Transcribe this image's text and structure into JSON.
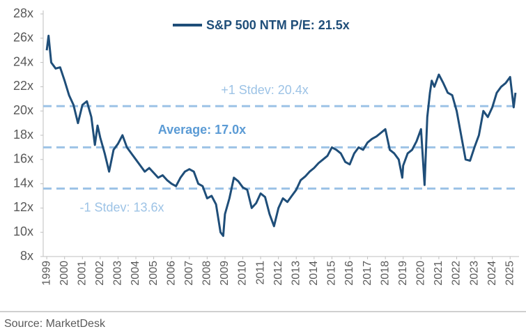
{
  "chart_data": {
    "type": "line",
    "series": [
      {
        "name": "S&P 500 NTM P/E: 21.5x",
        "color": "#1f4e79",
        "x": [
          1999.0,
          1999.1,
          1999.25,
          1999.5,
          1999.75,
          2000.0,
          2000.25,
          2000.5,
          2000.75,
          2001.0,
          2001.25,
          2001.5,
          2001.7,
          2001.85,
          2002.0,
          2002.25,
          2002.5,
          2002.75,
          2003.0,
          2003.25,
          2003.5,
          2003.75,
          2004.0,
          2004.25,
          2004.5,
          2004.75,
          2005.0,
          2005.25,
          2005.5,
          2005.75,
          2006.0,
          2006.25,
          2006.5,
          2006.75,
          2007.0,
          2007.25,
          2007.5,
          2007.75,
          2008.0,
          2008.25,
          2008.5,
          2008.75,
          2008.9,
          2009.0,
          2009.25,
          2009.5,
          2009.75,
          2010.0,
          2010.25,
          2010.5,
          2010.75,
          2011.0,
          2011.25,
          2011.5,
          2011.75,
          2012.0,
          2012.25,
          2012.5,
          2012.75,
          2013.0,
          2013.25,
          2013.5,
          2013.75,
          2014.0,
          2014.25,
          2014.5,
          2014.75,
          2015.0,
          2015.25,
          2015.5,
          2015.75,
          2016.0,
          2016.25,
          2016.5,
          2016.75,
          2017.0,
          2017.25,
          2017.5,
          2017.75,
          2018.0,
          2018.25,
          2018.5,
          2018.75,
          2018.95,
          2019.0,
          2019.25,
          2019.5,
          2019.75,
          2020.0,
          2020.2,
          2020.35,
          2020.5,
          2020.6,
          2020.75,
          2021.0,
          2021.25,
          2021.5,
          2021.75,
          2022.0,
          2022.25,
          2022.5,
          2022.75,
          2023.0,
          2023.25,
          2023.5,
          2023.75,
          2024.0,
          2024.25,
          2024.5,
          2024.75,
          2025.0,
          2025.2,
          2025.3
        ],
        "values": [
          25.0,
          26.2,
          24.0,
          23.5,
          23.6,
          22.5,
          21.3,
          20.5,
          19.0,
          20.5,
          20.8,
          19.5,
          17.2,
          18.8,
          17.8,
          16.5,
          15.0,
          16.8,
          17.3,
          18.0,
          17.0,
          16.5,
          16.0,
          15.5,
          15.0,
          15.3,
          14.9,
          14.5,
          14.7,
          14.3,
          14.0,
          13.8,
          14.5,
          15.0,
          15.2,
          15.0,
          14.0,
          13.8,
          12.8,
          13.0,
          12.3,
          10.0,
          9.7,
          11.5,
          12.8,
          14.5,
          14.2,
          13.7,
          13.5,
          12.0,
          12.4,
          13.2,
          12.9,
          11.5,
          10.5,
          12.0,
          12.8,
          12.5,
          13.0,
          13.5,
          14.3,
          14.6,
          15.0,
          15.3,
          15.7,
          16.0,
          16.3,
          17.0,
          16.8,
          16.5,
          15.8,
          15.6,
          16.5,
          17.0,
          16.8,
          17.4,
          17.7,
          17.9,
          18.2,
          18.5,
          16.8,
          16.5,
          16.0,
          14.5,
          15.5,
          16.5,
          16.8,
          17.5,
          18.5,
          13.9,
          19.5,
          21.5,
          22.5,
          22.0,
          23.0,
          22.3,
          21.5,
          21.3,
          20.0,
          18.0,
          16.0,
          15.9,
          17.0,
          18.0,
          20.0,
          19.5,
          20.3,
          21.5,
          22.0,
          22.3,
          22.8,
          20.3,
          21.5
        ]
      }
    ],
    "reference_lines": [
      {
        "value": 20.4,
        "label": "+1 Stdev: 20.4x"
      },
      {
        "value": 17.0,
        "label": "Average: 17.0x"
      },
      {
        "value": 13.6,
        "label": "-1 Stdev: 13.6x"
      }
    ],
    "reference_color": "#9dc3e6",
    "xlim": [
      1998.8,
      2025.5
    ],
    "xticks": [
      1999,
      2000,
      2001,
      2002,
      2003,
      2004,
      2005,
      2006,
      2007,
      2008,
      2009,
      2010,
      2011,
      2012,
      2013,
      2014,
      2015,
      2016,
      2017,
      2018,
      2019,
      2020,
      2021,
      2022,
      2023,
      2024,
      2025
    ],
    "ylim": [
      8,
      28
    ],
    "yticks": [
      {
        "value": 8,
        "label": "8x"
      },
      {
        "value": 10,
        "label": "10x"
      },
      {
        "value": 12,
        "label": "12x"
      },
      {
        "value": 14,
        "label": "14x"
      },
      {
        "value": 16,
        "label": "16x"
      },
      {
        "value": 18,
        "label": "18x"
      },
      {
        "value": 20,
        "label": "20x"
      },
      {
        "value": 22,
        "label": "22x"
      },
      {
        "value": 24,
        "label": "24x"
      },
      {
        "value": 26,
        "label": "26x"
      },
      {
        "value": 28,
        "label": "28x"
      }
    ],
    "source": "Source: MarketDesk"
  }
}
